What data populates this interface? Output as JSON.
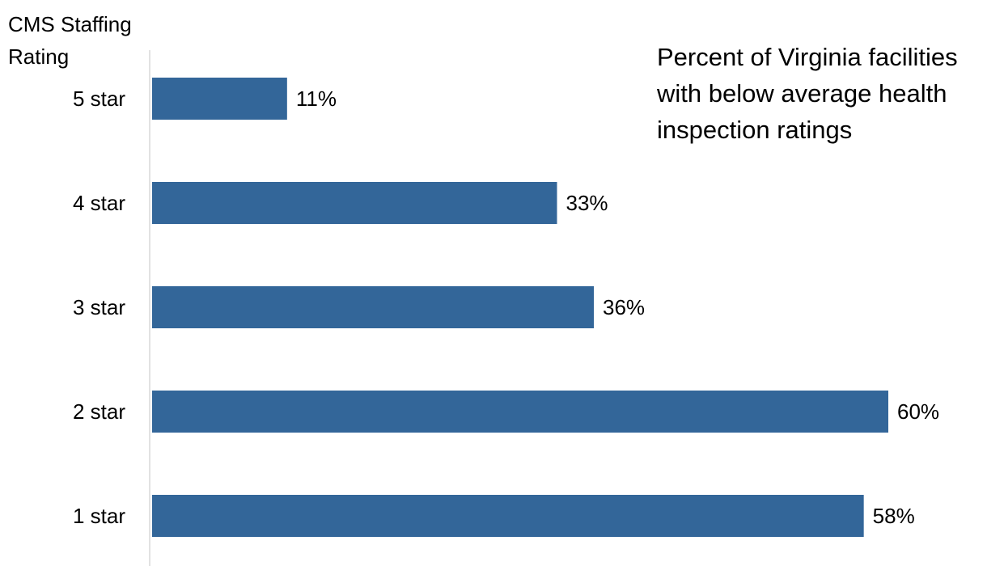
{
  "chart_data": {
    "type": "bar",
    "orientation": "horizontal",
    "title": "Percent of Virginia facilities with below average health inspection ratings",
    "ylabel": "CMS Staffing\nRating",
    "xlabel": "",
    "categories": [
      "5 star",
      "4 star",
      "3 star",
      "2 star",
      "1 star"
    ],
    "values": [
      11,
      33,
      36,
      60,
      58
    ],
    "data_labels": [
      "11%",
      "33%",
      "36%",
      "60%",
      "58%"
    ],
    "xlim": [
      0,
      60
    ],
    "grid": false,
    "legend": "none",
    "colors": {
      "bar": "#336699",
      "axis": "#d9d9d9"
    }
  }
}
